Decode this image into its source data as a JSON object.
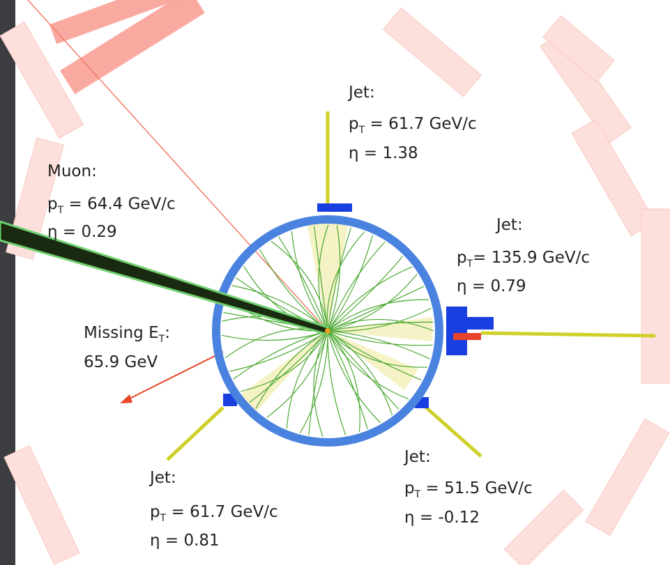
{
  "labels": [
    {
      "title": "Jet:",
      "p": "p",
      "sub": "T",
      "pt": " = 61.7 GeV/c",
      "eta": "η = 1.38"
    },
    {
      "title": "Muon:",
      "p": "p",
      "sub": "T",
      "pt": " = 64.4 GeV/c",
      "eta": "η = 0.29"
    },
    {
      "title": "Jet:",
      "p": "p",
      "sub": "T",
      "pt": "= 135.9 GeV/c",
      "eta": "η = 0.79"
    },
    {
      "title": "Jet:",
      "p": "p",
      "sub": "T",
      "pt": " = 61.7 GeV/c",
      "eta": "η = 0.81"
    },
    {
      "title": "Jet:",
      "p": "p",
      "sub": "T",
      "pt": " = 51.5 GeV/c",
      "eta": "η = -0.12"
    }
  ],
  "missing": {
    "title": "Missing E",
    "sub": "T",
    "colon": ":",
    "value": "65.9 GeV"
  }
}
